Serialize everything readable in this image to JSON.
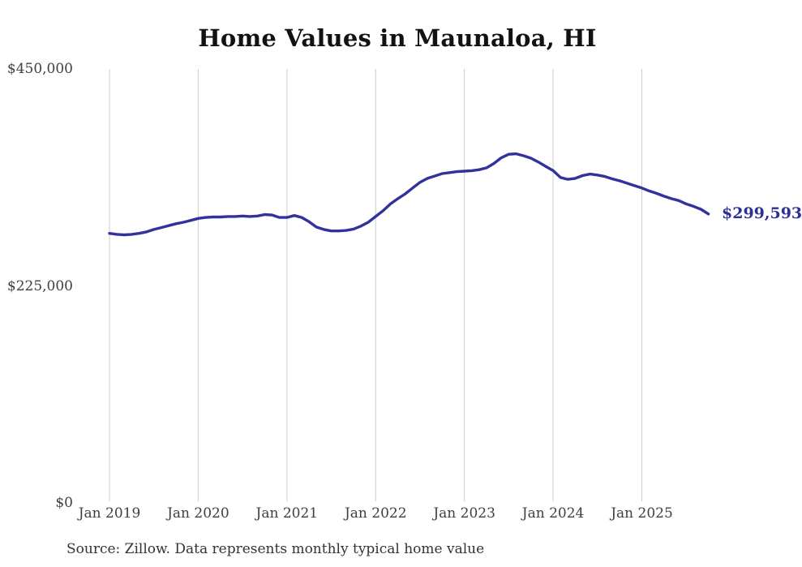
{
  "title": "Home Values in Maunaloa, HI",
  "source_note": "Source: Zillow. Data represents monthly typical home value",
  "end_label": "$299,593",
  "y_axis_ticks": [
    {
      "label": "$450,000",
      "value": 450000
    },
    {
      "label": "$225,000",
      "value": 225000
    },
    {
      "label": "$0",
      "value": 0
    }
  ],
  "x_axis_ticks": [
    "Jan 2019",
    "Jan 2020",
    "Jan 2021",
    "Jan 2022",
    "Jan 2023",
    "Jan 2024",
    "Jan 2025"
  ],
  "colors": {
    "line": "#32329e",
    "grid": "#cccccc",
    "tick_text": "#3f3f3f",
    "title_text": "#121212",
    "end_label_text": "#2e2e99",
    "source_text": "#333333"
  },
  "chart_data": {
    "type": "line",
    "title": "Home Values in Maunaloa, HI",
    "series_name": "Monthly typical home value",
    "x_start": "Jan 2019",
    "x_end": "Oct 2025",
    "x_step": "month",
    "ylim": [
      0,
      450000
    ],
    "unit": "USD",
    "grid": "vertical-yearly",
    "legend": "none",
    "values": [
      279500,
      278500,
      278000,
      278500,
      279500,
      281000,
      283500,
      285500,
      287500,
      289500,
      291000,
      293000,
      295000,
      296000,
      296500,
      296500,
      297000,
      297000,
      297500,
      297000,
      297500,
      299000,
      298500,
      296000,
      296000,
      298000,
      296000,
      291500,
      286000,
      283500,
      282000,
      282000,
      282500,
      284000,
      287000,
      291000,
      297000,
      303000,
      310000,
      315500,
      320500,
      326500,
      332500,
      336500,
      339000,
      341500,
      342500,
      343500,
      344000,
      344500,
      345500,
      347500,
      352000,
      358000,
      361500,
      362000,
      360000,
      357500,
      353500,
      349000,
      344500,
      337500,
      335500,
      336500,
      339500,
      341000,
      340000,
      338500,
      336000,
      334000,
      331500,
      329000,
      326500,
      323500,
      321000,
      318000,
      315500,
      313500,
      310000,
      307500,
      304500,
      299593
    ],
    "last_point": {
      "month": "Oct 2025",
      "value": 299593,
      "label": "$299,593"
    }
  }
}
